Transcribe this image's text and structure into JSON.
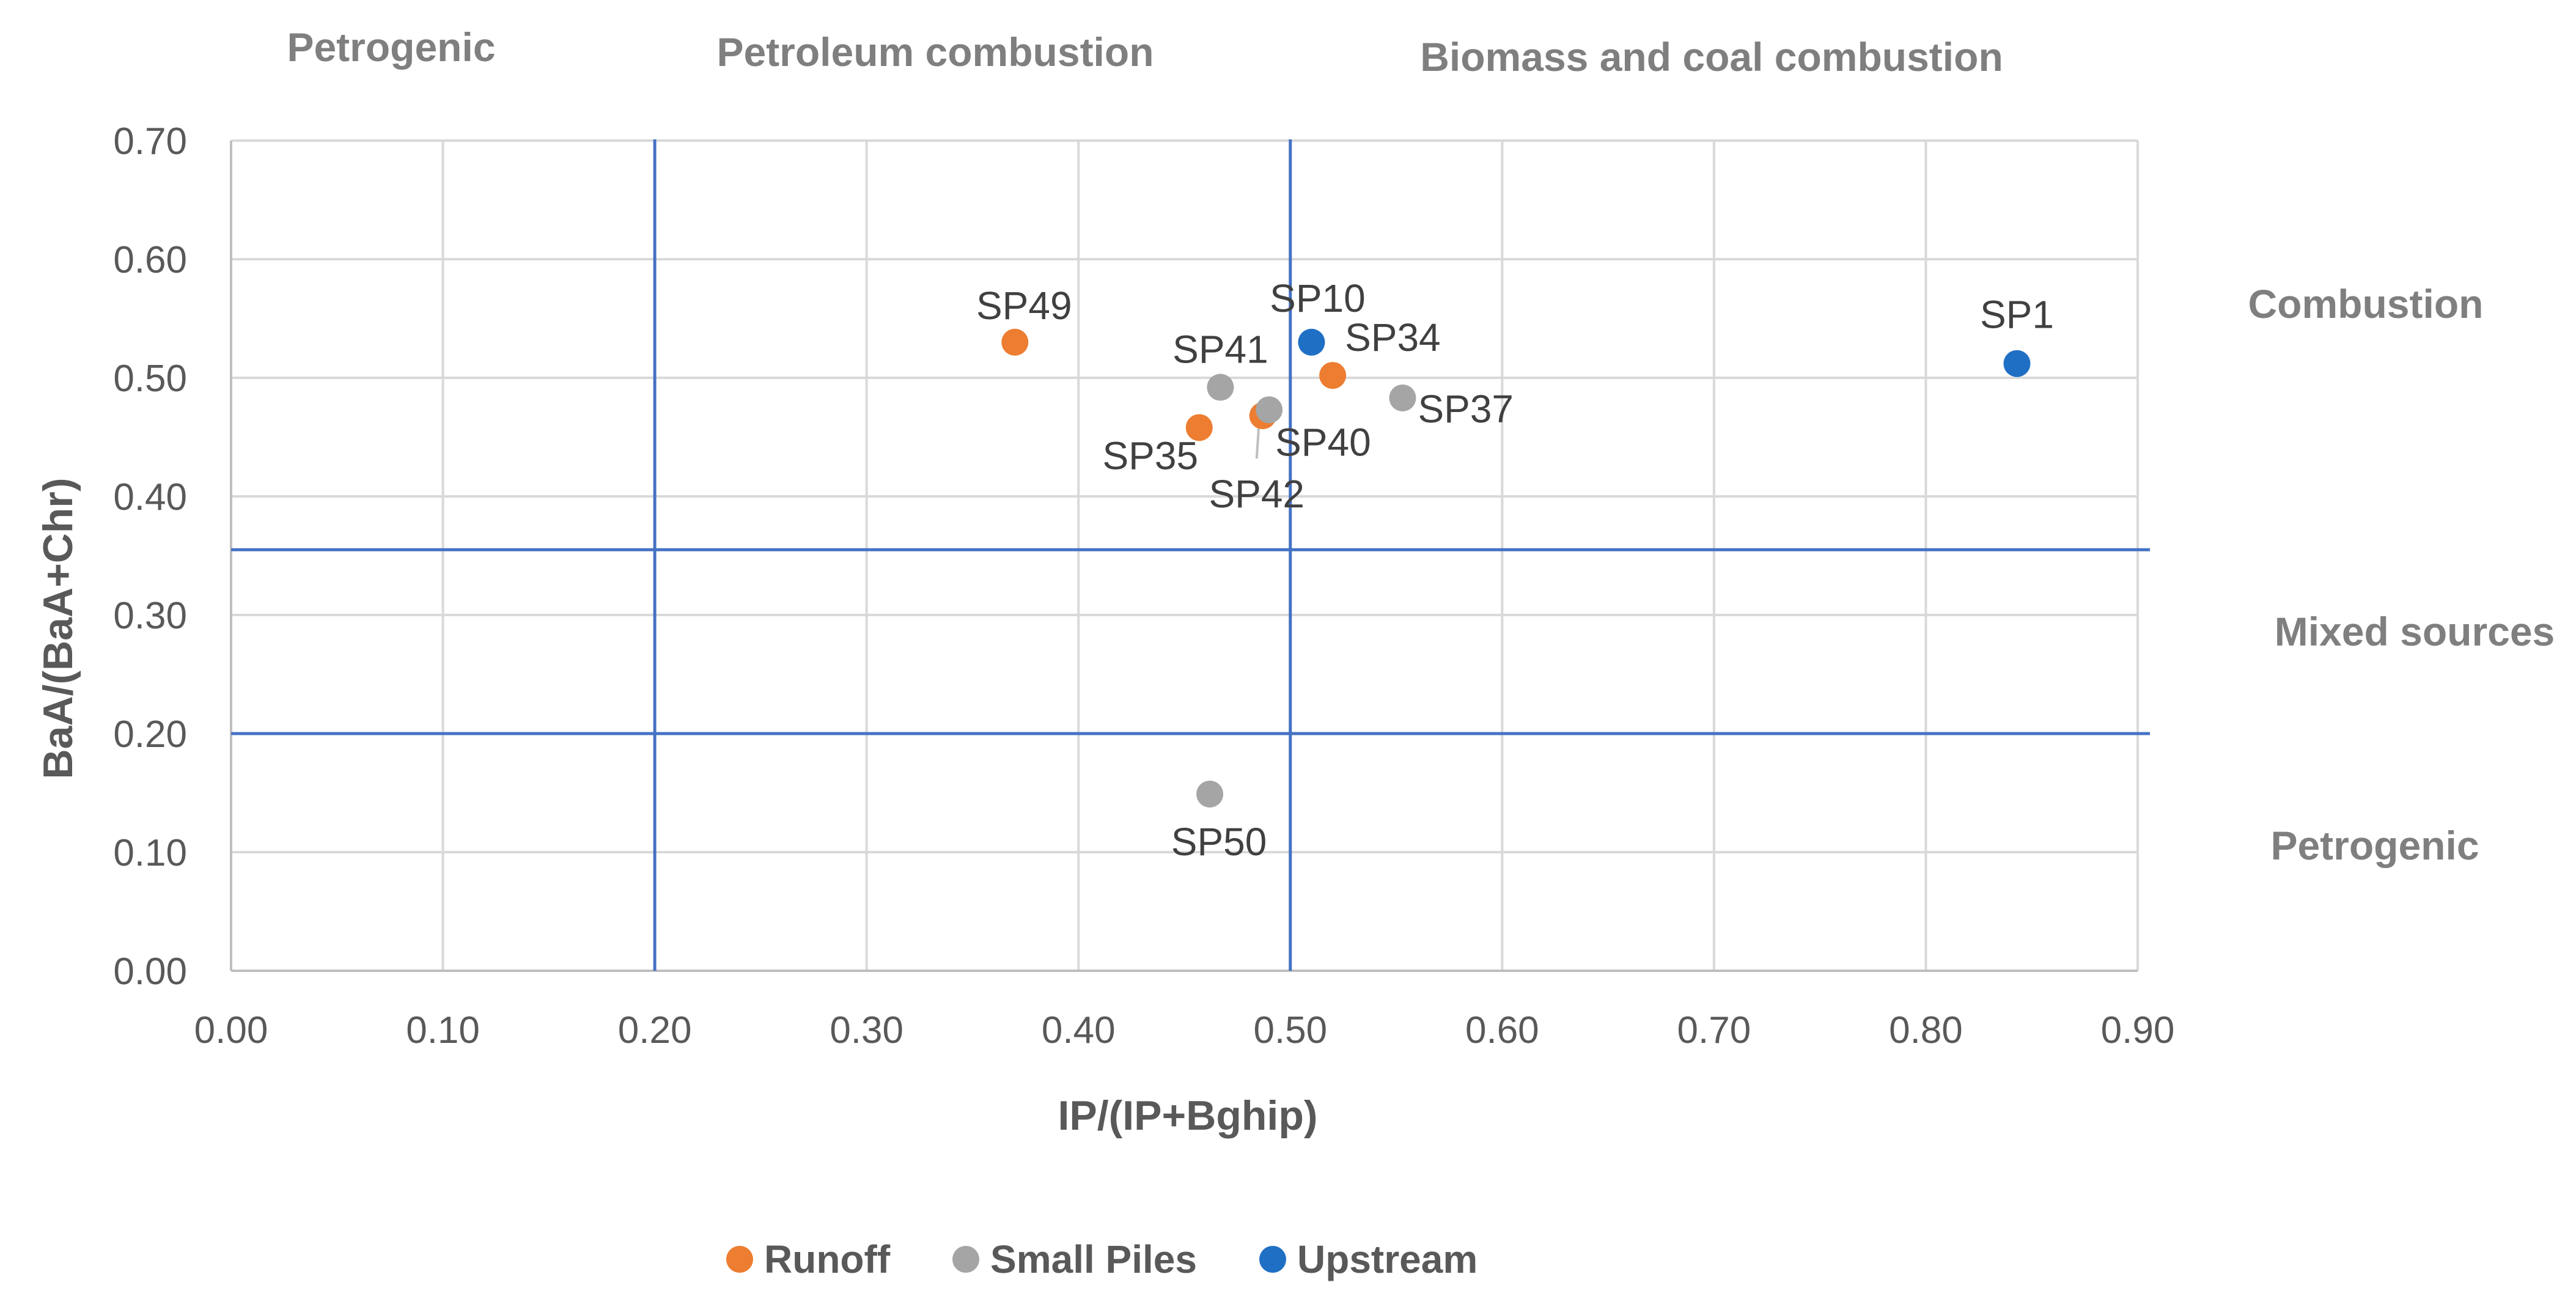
{
  "chart_data": {
    "type": "scatter",
    "title": "",
    "xlabel": "IP/(IP+Bghip)",
    "ylabel": "BaA/(BaA+Chr)",
    "xlim": [
      0.0,
      0.9
    ],
    "ylim": [
      0.0,
      0.7
    ],
    "x_ticks": [
      "0.00",
      "0.10",
      "0.20",
      "0.30",
      "0.40",
      "0.50",
      "0.60",
      "0.70",
      "0.80",
      "0.90"
    ],
    "y_ticks": [
      "0.00",
      "0.10",
      "0.20",
      "0.30",
      "0.40",
      "0.50",
      "0.60",
      "0.70"
    ],
    "x_tick_values": [
      0,
      0.1,
      0.2,
      0.3,
      0.4,
      0.5,
      0.6,
      0.7,
      0.8,
      0.9
    ],
    "y_tick_values": [
      0,
      0.1,
      0.2,
      0.3,
      0.4,
      0.5,
      0.6,
      0.7
    ],
    "grid": true,
    "legend_position": "bottom",
    "colors": {
      "Runoff": "#ed7d31",
      "Small Piles": "#a5a5a5",
      "Upstream": "#1f6fc5"
    },
    "series": [
      {
        "name": "Runoff",
        "points": [
          {
            "label": "SP49",
            "x": 0.37,
            "y": 0.53
          },
          {
            "label": "SP35",
            "x": 0.457,
            "y": 0.458
          },
          {
            "label": "SP42",
            "x": 0.487,
            "y": 0.468
          },
          {
            "label": "SP34",
            "x": 0.52,
            "y": 0.502
          }
        ]
      },
      {
        "name": "Small Piles",
        "points": [
          {
            "label": "SP41",
            "x": 0.467,
            "y": 0.492
          },
          {
            "label": "SP40",
            "x": 0.49,
            "y": 0.473
          },
          {
            "label": "SP37",
            "x": 0.553,
            "y": 0.483
          },
          {
            "label": "SP50",
            "x": 0.462,
            "y": 0.149
          }
        ]
      },
      {
        "name": "Upstream",
        "points": [
          {
            "label": "SP10",
            "x": 0.51,
            "y": 0.53
          },
          {
            "label": "SP1",
            "x": 0.843,
            "y": 0.512
          }
        ]
      }
    ],
    "thresholds": {
      "vertical": [
        0.2,
        0.5
      ],
      "horizontal": [
        0.355,
        0.2
      ]
    },
    "regions": {
      "top": [
        "Petrogenic",
        "Petroleum combustion",
        "Biomass and coal combustion"
      ],
      "right": [
        "Combustion",
        "Mixed sources",
        "Petrogenic"
      ]
    }
  }
}
